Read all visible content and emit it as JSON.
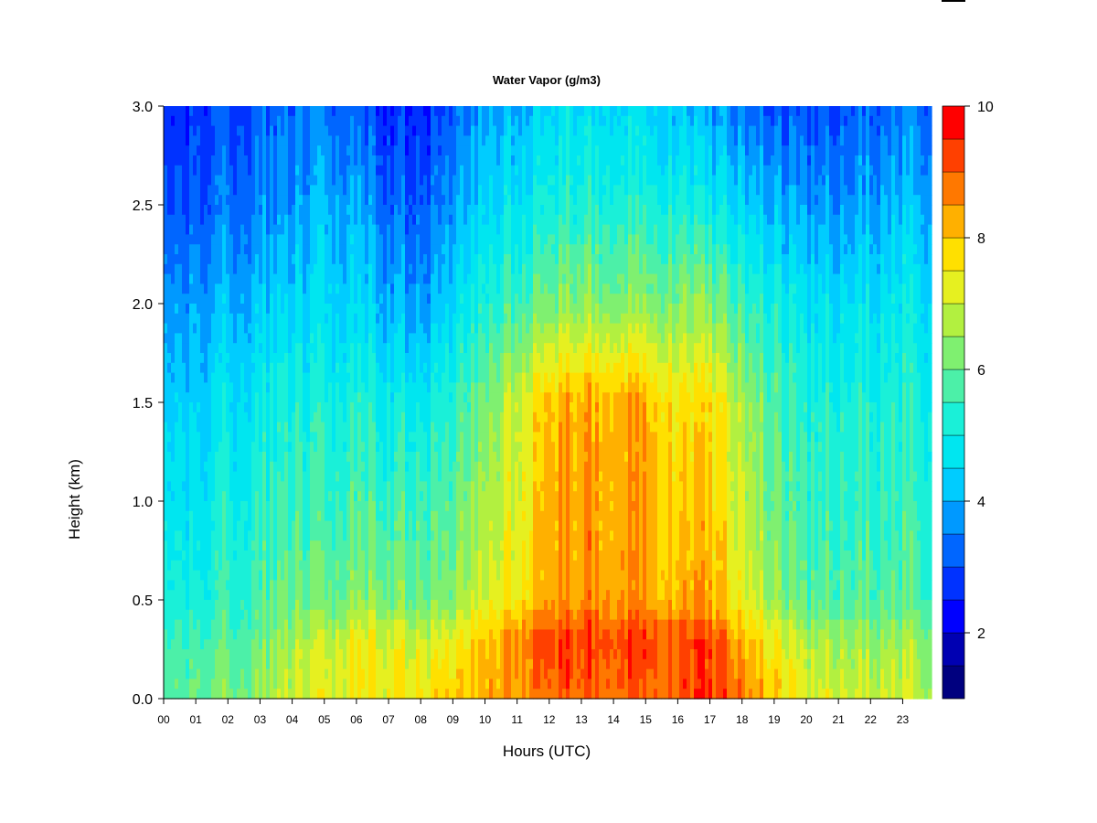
{
  "chart_data": {
    "type": "heatmap",
    "title": "Water Vapor (g/m3)",
    "xlabel": "Hours (UTC)",
    "ylabel": "Height (km)",
    "x_tick_labels": [
      "00",
      "01",
      "02",
      "03",
      "04",
      "05",
      "06",
      "07",
      "08",
      "09",
      "10",
      "11",
      "12",
      "13",
      "14",
      "15",
      "16",
      "17",
      "18",
      "19",
      "20",
      "21",
      "22",
      "23"
    ],
    "x_range": [
      0,
      23.9
    ],
    "y_tick_labels": [
      "0.0",
      "0.5",
      "1.0",
      "1.5",
      "2.0",
      "2.5",
      "3.0"
    ],
    "y_ticks": [
      0.0,
      0.5,
      1.0,
      1.5,
      2.0,
      2.5,
      3.0
    ],
    "y_range": [
      0.0,
      3.0
    ],
    "colorbar": {
      "range": [
        1,
        10
      ],
      "tick_labels": [
        "2",
        "4",
        "6",
        "8",
        "10"
      ],
      "ticks": [
        2,
        4,
        6,
        8,
        10
      ],
      "levels": [
        1,
        1.5,
        2,
        2.5,
        3,
        3.5,
        4,
        4.5,
        5,
        5.5,
        6,
        6.5,
        7,
        7.5,
        8,
        8.5,
        9,
        9.5,
        10
      ],
      "colors": [
        "#00007F",
        "#0000B2",
        "#0000FF",
        "#0032FF",
        "#0066FF",
        "#0099FF",
        "#00CCFF",
        "#00E6F0",
        "#1AF0D8",
        "#4CF0A8",
        "#7FF070",
        "#B2F040",
        "#E6F020",
        "#FFE000",
        "#FFB000",
        "#FF7800",
        "#FF4000",
        "#FF0000",
        "#C80000",
        "#8B0000"
      ]
    },
    "hour_profiles": [
      {
        "hour": 0,
        "heights": [
          0,
          0.3,
          0.5,
          1.0,
          1.5,
          2.0,
          2.5,
          3.0
        ],
        "values": [
          5.4,
          5.1,
          4.8,
          4.3,
          3.9,
          3.3,
          2.6,
          2.2
        ]
      },
      {
        "hour": 1,
        "heights": [
          0,
          0.3,
          0.5,
          1.0,
          1.5,
          2.0,
          2.5,
          3.0
        ],
        "values": [
          5.6,
          5.2,
          4.7,
          4.3,
          3.9,
          3.4,
          2.7,
          2.3
        ]
      },
      {
        "hour": 2,
        "heights": [
          0,
          0.3,
          0.5,
          1.0,
          1.5,
          2.0,
          2.5,
          3.0
        ],
        "values": [
          5.8,
          5.3,
          5.0,
          4.6,
          4.2,
          3.6,
          2.9,
          2.5
        ]
      },
      {
        "hour": 3,
        "heights": [
          0,
          0.3,
          0.5,
          1.0,
          1.5,
          2.0,
          2.5,
          3.0
        ],
        "values": [
          6.0,
          5.5,
          5.2,
          4.8,
          4.4,
          3.7,
          3.0,
          2.6
        ]
      },
      {
        "hour": 4,
        "heights": [
          0,
          0.3,
          0.5,
          1.0,
          1.5,
          2.0,
          2.5,
          3.0
        ],
        "values": [
          6.5,
          6.1,
          5.5,
          5.0,
          4.6,
          3.9,
          3.2,
          2.7
        ]
      },
      {
        "hour": 5,
        "heights": [
          0,
          0.3,
          0.5,
          1.0,
          1.5,
          2.0,
          2.5,
          3.0
        ],
        "values": [
          6.8,
          6.5,
          5.6,
          5.1,
          4.7,
          4.1,
          3.6,
          3.0
        ]
      },
      {
        "hour": 6,
        "heights": [
          0,
          0.3,
          0.5,
          1.0,
          1.5,
          2.0,
          2.5,
          3.0
        ],
        "values": [
          6.9,
          6.8,
          5.8,
          5.2,
          4.7,
          4.0,
          3.4,
          2.6
        ]
      },
      {
        "hour": 7,
        "heights": [
          0,
          0.3,
          0.5,
          1.0,
          1.5,
          2.0,
          2.5,
          3.0
        ],
        "values": [
          7.0,
          6.8,
          5.8,
          5.1,
          4.5,
          3.6,
          2.8,
          2.2
        ]
      },
      {
        "hour": 8,
        "heights": [
          0,
          0.3,
          0.5,
          1.0,
          1.5,
          2.0,
          2.5,
          3.0
        ],
        "values": [
          7.2,
          6.5,
          5.6,
          5.1,
          4.4,
          3.3,
          2.6,
          2.1
        ]
      },
      {
        "hour": 9,
        "heights": [
          0,
          0.3,
          0.5,
          1.0,
          1.5,
          2.0,
          2.5,
          3.0
        ],
        "values": [
          7.4,
          6.8,
          5.8,
          5.3,
          4.8,
          4.0,
          3.2,
          2.6
        ]
      },
      {
        "hour": 10,
        "heights": [
          0,
          0.3,
          0.5,
          1.0,
          1.5,
          2.0,
          2.5,
          3.0
        ],
        "values": [
          7.6,
          7.4,
          6.5,
          6.0,
          5.5,
          4.6,
          3.8,
          3.2
        ]
      },
      {
        "hour": 11,
        "heights": [
          0,
          0.3,
          0.5,
          1.0,
          1.5,
          2.0,
          2.5,
          3.0
        ],
        "values": [
          8.2,
          8.3,
          7.2,
          6.8,
          6.7,
          5.3,
          4.3,
          3.7
        ]
      },
      {
        "hour": 12,
        "heights": [
          0,
          0.3,
          0.5,
          1.0,
          1.5,
          2.0,
          2.5,
          3.0
        ],
        "values": [
          8.4,
          8.8,
          7.9,
          7.8,
          7.6,
          5.7,
          4.7,
          4.0
        ]
      },
      {
        "hour": 13,
        "heights": [
          0,
          0.3,
          0.5,
          1.0,
          1.5,
          2.0,
          2.5,
          3.0
        ],
        "values": [
          8.5,
          8.8,
          8.0,
          7.9,
          7.8,
          5.9,
          4.8,
          4.1
        ]
      },
      {
        "hour": 14,
        "heights": [
          0,
          0.3,
          0.5,
          1.0,
          1.5,
          2.0,
          2.5,
          3.0
        ],
        "values": [
          8.6,
          8.9,
          8.1,
          8.0,
          7.9,
          6.0,
          4.9,
          4.2
        ]
      },
      {
        "hour": 15,
        "heights": [
          0,
          0.3,
          0.5,
          1.0,
          1.5,
          2.0,
          2.5,
          3.0
        ],
        "values": [
          8.6,
          8.9,
          8.1,
          8.0,
          7.9,
          6.0,
          4.9,
          4.1
        ]
      },
      {
        "hour": 16,
        "heights": [
          0,
          0.3,
          0.5,
          1.0,
          1.5,
          2.0,
          2.5,
          3.0
        ],
        "values": [
          8.5,
          8.5,
          7.6,
          7.3,
          7.0,
          5.7,
          4.6,
          3.6
        ]
      },
      {
        "hour": 17,
        "heights": [
          0,
          0.3,
          0.5,
          1.0,
          1.5,
          2.0,
          2.5,
          3.0
        ],
        "values": [
          8.9,
          8.7,
          7.8,
          7.5,
          7.2,
          5.8,
          4.4,
          3.3
        ]
      },
      {
        "hour": 18,
        "heights": [
          0,
          0.3,
          0.5,
          1.0,
          1.5,
          2.0,
          2.5,
          3.0
        ],
        "values": [
          8.2,
          7.6,
          6.7,
          6.3,
          6.0,
          5.0,
          3.8,
          2.8
        ]
      },
      {
        "hour": 19,
        "heights": [
          0,
          0.3,
          0.5,
          1.0,
          1.5,
          2.0,
          2.5,
          3.0
        ],
        "values": [
          7.5,
          7.0,
          6.0,
          5.6,
          5.3,
          4.7,
          3.6,
          2.6
        ]
      },
      {
        "hour": 20,
        "heights": [
          0,
          0.3,
          0.5,
          1.0,
          1.5,
          2.0,
          2.5,
          3.0
        ],
        "values": [
          6.7,
          6.2,
          5.4,
          5.0,
          4.8,
          4.2,
          3.3,
          2.5
        ]
      },
      {
        "hour": 21,
        "heights": [
          0,
          0.3,
          0.5,
          1.0,
          1.5,
          2.0,
          2.5,
          3.0
        ],
        "values": [
          6.6,
          6.1,
          5.3,
          5.0,
          4.7,
          4.1,
          3.2,
          2.5
        ]
      },
      {
        "hour": 22,
        "heights": [
          0,
          0.3,
          0.5,
          1.0,
          1.5,
          2.0,
          2.5,
          3.0
        ],
        "values": [
          6.5,
          6.0,
          5.3,
          5.0,
          4.7,
          4.2,
          3.4,
          2.7
        ]
      },
      {
        "hour": 23,
        "heights": [
          0,
          0.3,
          0.5,
          1.0,
          1.5,
          2.0,
          2.5,
          3.0
        ],
        "values": [
          6.4,
          6.0,
          5.3,
          5.0,
          4.7,
          4.3,
          3.6,
          2.9
        ]
      },
      {
        "hour": 23.9,
        "heights": [
          0,
          0.3,
          0.5,
          1.0,
          1.5,
          2.0,
          2.5,
          3.0
        ],
        "values": [
          6.4,
          6.0,
          5.3,
          5.0,
          4.7,
          4.3,
          3.6,
          2.9
        ]
      }
    ]
  }
}
